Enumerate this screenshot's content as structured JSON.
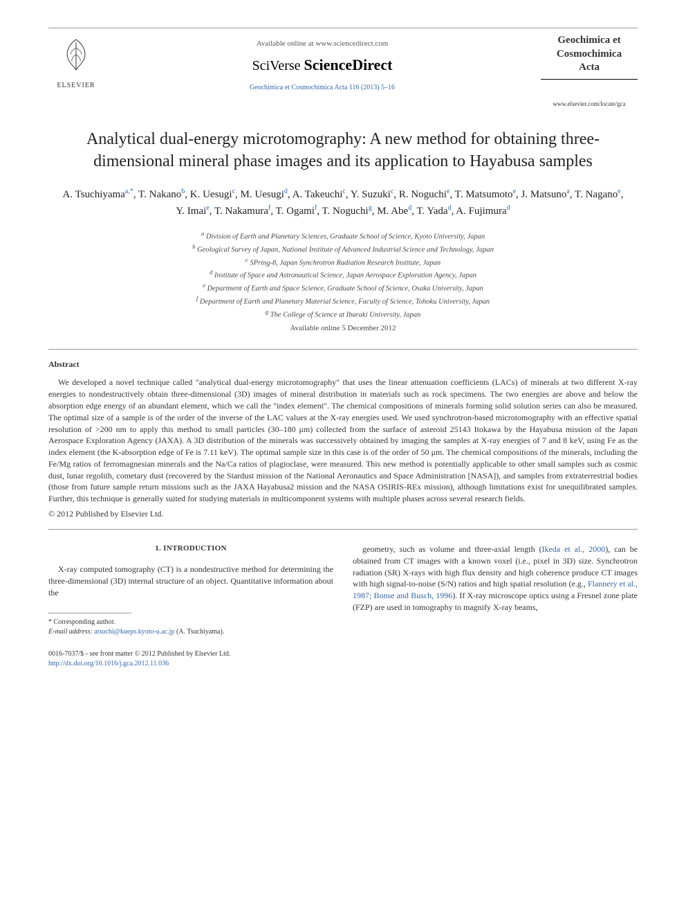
{
  "header": {
    "available_text": "Available online at www.sciencedirect.com",
    "brand_prefix": "SciVerse ",
    "brand_main": "ScienceDirect",
    "journal_ref": "Geochimica et Cosmochimica Acta 116 (2013) 5–16",
    "elsevier_label": "ELSEVIER",
    "journal_name_line1": "Geochimica et",
    "journal_name_line2": "Cosmochimica",
    "journal_name_line3": "Acta",
    "journal_url": "www.elsevier.com/locate/gca"
  },
  "title": "Analytical dual-energy microtomography: A new method for obtaining three-dimensional mineral phase images and its application to Hayabusa samples",
  "authors_html": "A. Tsuchiyama<sup class='sup-link'>a,*</sup>, T. Nakano<sup class='sup-link'>b</sup>, K. Uesugi<sup class='sup-link'>c</sup>, M. Uesugi<sup class='sup-link'>d</sup>, A. Takeuchi<sup class='sup-link'>c</sup>, Y. Suzuki<sup class='sup-link'>c</sup>, R. Noguchi<sup class='sup-link'>e</sup>, T. Matsumoto<sup class='sup-link'>e</sup>, J. Matsuno<sup class='sup-link'>a</sup>, T. Nagano<sup class='sup-link'>e</sup>, Y. Imai<sup class='sup-link'>e</sup>, T. Nakamura<sup class='sup-link'>f</sup>, T. Ogami<sup class='sup-link'>f</sup>, T. Noguchi<sup class='sup-link'>g</sup>, M. Abe<sup class='sup-link'>d</sup>, T. Yada<sup class='sup-link'>d</sup>, A. Fujimura<sup class='sup-link'>d</sup>",
  "affiliations": [
    "a Division of Earth and Planetary Sciences, Graduate School of Science, Kyoto University, Japan",
    "b Geological Survey of Japan, National Institute of Advanced Industrial Science and Technology, Japan",
    "c SPring-8, Japan Synchrotron Radiation Research Institute, Japan",
    "d Institute of Space and Astronautical Science, Japan Aerospace Exploration Agency, Japan",
    "e Department of Earth and Space Science, Graduate School of Science, Osaka University, Japan",
    "f Department of Earth and Planetary Material Science, Faculty of Science, Tohoku University, Japan",
    "g The College of Science at Ibaraki University, Japan"
  ],
  "available_date": "Available online 5 December 2012",
  "abstract": {
    "heading": "Abstract",
    "body": "We developed a novel technique called \"analytical dual-energy microtomography\" that uses the linear attenuation coefficients (LACs) of minerals at two different X-ray energies to nondestructively obtain three-dimensional (3D) images of mineral distribution in materials such as rock specimens. The two energies are above and below the absorption edge energy of an abundant element, which we call the \"index element\". The chemical compositions of minerals forming solid solution series can also be measured. The optimal size of a sample is of the order of the inverse of the LAC values at the X-ray energies used. We used synchrotron-based microtomography with an effective spatial resolution of >200 nm to apply this method to small particles (30–180 μm) collected from the surface of asteroid 25143 Itokawa by the Hayabusa mission of the Japan Aerospace Exploration Agency (JAXA). A 3D distribution of the minerals was successively obtained by imaging the samples at X-ray energies of 7 and 8 keV, using Fe as the index element (the K-absorption edge of Fe is 7.11 keV). The optimal sample size in this case is of the order of 50 μm. The chemical compositions of the minerals, including the Fe/Mg ratios of ferromagnesian minerals and the Na/Ca ratios of plagioclase, were measured. This new method is potentially applicable to other small samples such as cosmic dust, lunar regolith, cometary dust (recovered by the Stardust mission of the National Aeronautics and Space Administration [NASA]), and samples from extraterrestrial bodies (those from future sample return missions such as the JAXA Hayabusa2 mission and the NASA OSIRIS-REx mission), although limitations exist for unequilibrated samples. Further, this technique is generally suited for studying materials in multicomponent systems with multiple phases across several research fields.",
    "copyright": "© 2012 Published by Elsevier Ltd."
  },
  "section1": {
    "heading": "1. INTRODUCTION",
    "left_para": "X-ray computed tomography (CT) is a nondestructive method for determining the three-dimensional (3D) internal structure of an object. Quantitative information about the",
    "right_para_html": "geometry, such as volume and three-axial length (<span class='cite-link'>Ikeda et al., 2000</span>), can be obtained from CT images with a known voxel (i.e., pixel in 3D) size. Synchrotron radiation (SR) X-rays with high flux density and high coherence produce CT images with high signal-to-noise (S/N) ratios and high spatial resolution (e.g., <span class='cite-link'>Flannery et al., 1987; Bonse and Busch, 1996</span>). If X-ray microscope optics using a Fresnel zone plate (FZP) are used in tomography to magnify X-ray beams,"
  },
  "footnote": {
    "corresponding": "* Corresponding author.",
    "email_label": "E-mail address:",
    "email": "atsuchi@kueps.kyoto-u.ac.jp",
    "email_suffix": "(A. Tsuchiyama)."
  },
  "bottom": {
    "issn_line": "0016-7037/$ - see front matter © 2012 Published by Elsevier Ltd.",
    "doi": "http://dx.doi.org/10.1016/j.gca.2012.11.036"
  },
  "colors": {
    "link": "#3366aa",
    "text": "#333333",
    "rule": "#999999"
  }
}
